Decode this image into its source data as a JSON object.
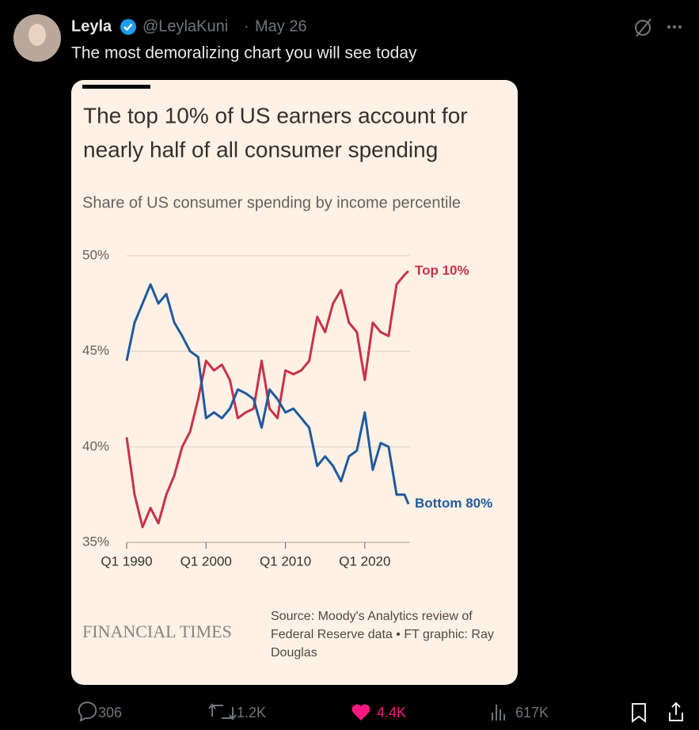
{
  "tweet": {
    "name": "Leyla",
    "handle": "@LeylaKuni",
    "separator": "·",
    "date": "May 26",
    "text": "The most demoralizing chart you will see today",
    "stats": {
      "replies": "306",
      "reposts": "1.2K",
      "likes": "4.4K",
      "views": "617K"
    }
  },
  "chart_data": {
    "type": "line",
    "title": [
      "The top 10% of US earners account for",
      "nearly half of all consumer spending"
    ],
    "subtitle": "Share of US consumer spending by income percentile",
    "publisher": "FINANCIAL TIMES",
    "source": [
      "Source: Moody's Analytics review of",
      "Federal Reserve data • FT graphic: Ray",
      "Douglas"
    ],
    "x": [
      1990,
      1991,
      1992,
      1993,
      1994,
      1995,
      1996,
      1997,
      1998,
      1999,
      2000,
      2001,
      2002,
      2003,
      2004,
      2005,
      2006,
      2007,
      2008,
      2009,
      2010,
      2011,
      2012,
      2013,
      2014,
      2015,
      2016,
      2017,
      2018,
      2019,
      2020,
      2021,
      2022,
      2023,
      2024,
      2025,
      2025.5
    ],
    "series": [
      {
        "name": "Top 10%",
        "color": "#c8324a",
        "values": [
          40.5,
          37.5,
          35.8,
          36.8,
          36.0,
          37.5,
          38.5,
          40.0,
          40.8,
          42.5,
          44.5,
          44.0,
          44.3,
          43.5,
          41.5,
          41.8,
          42.0,
          44.5,
          42.0,
          41.5,
          44.0,
          43.8,
          44.0,
          44.5,
          46.8,
          46.0,
          47.5,
          48.2,
          46.5,
          46.0,
          43.5,
          46.5,
          46.0,
          45.8,
          48.5,
          49.0,
          49.2
        ]
      },
      {
        "name": "Bottom 80%",
        "color": "#1f5a9e",
        "values": [
          44.5,
          46.5,
          47.5,
          48.5,
          47.5,
          48.0,
          46.5,
          45.8,
          45.0,
          44.7,
          41.5,
          41.8,
          41.5,
          42.0,
          43.0,
          42.8,
          42.5,
          41.0,
          43.0,
          42.5,
          41.8,
          42.0,
          41.5,
          41.0,
          39.0,
          39.5,
          39.0,
          38.2,
          39.5,
          39.8,
          41.8,
          38.8,
          40.2,
          40.0,
          37.5,
          37.5,
          37.0
        ]
      }
    ],
    "xlim": [
      1990,
      2025.7
    ],
    "xticks": [
      {
        "value": 1990,
        "label": "Q1 1990"
      },
      {
        "value": 2000,
        "label": "Q1 2000"
      },
      {
        "value": 2010,
        "label": "Q1 2010"
      },
      {
        "value": 2020,
        "label": "Q1 2020"
      }
    ],
    "ylim": [
      35,
      50
    ],
    "yticks": [
      {
        "value": 35,
        "label": "35%"
      },
      {
        "value": 40,
        "label": "40%"
      },
      {
        "value": 45,
        "label": "45%"
      },
      {
        "value": 50,
        "label": "50%"
      }
    ],
    "grid": true
  }
}
